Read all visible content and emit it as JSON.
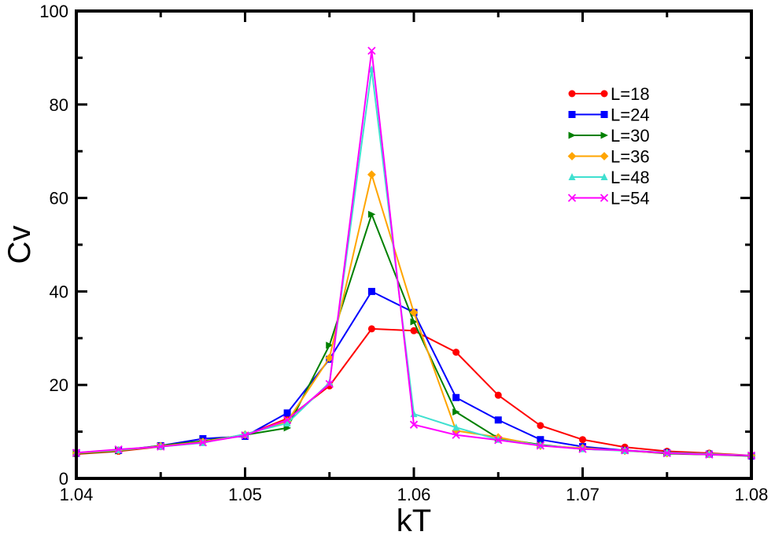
{
  "chart_data": {
    "type": "line",
    "title": "",
    "xlabel": "kT",
    "ylabel": "Cv",
    "xlim": [
      1.04,
      1.08
    ],
    "ylim": [
      0,
      100
    ],
    "xticks": [
      "1.04",
      "1.05",
      "1.06",
      "1.07",
      "1.08"
    ],
    "yticks": [
      "0",
      "20",
      "40",
      "60",
      "80",
      "100"
    ],
    "grid": false,
    "legend_position": "top-right",
    "series": [
      {
        "name": "L=18",
        "color": "#ff0000",
        "marker": "circle",
        "x": [
          1.04,
          1.0425,
          1.045,
          1.0475,
          1.05,
          1.0525,
          1.055,
          1.0575,
          1.06,
          1.0625,
          1.065,
          1.0675,
          1.07,
          1.0725,
          1.075,
          1.0775,
          1.08
        ],
        "y": [
          5.2,
          5.8,
          6.8,
          7.9,
          9.2,
          12.8,
          19.8,
          32.0,
          31.6,
          27.0,
          17.8,
          11.3,
          8.3,
          6.7,
          5.8,
          5.4,
          4.9
        ]
      },
      {
        "name": "L=24",
        "color": "#0000ff",
        "marker": "square",
        "x": [
          1.04,
          1.0425,
          1.045,
          1.0475,
          1.05,
          1.0525,
          1.055,
          1.0575,
          1.06,
          1.0625,
          1.065,
          1.0675,
          1.07,
          1.0725,
          1.075,
          1.0775,
          1.08
        ],
        "y": [
          5.4,
          6.0,
          7.0,
          8.5,
          9.0,
          14.0,
          25.5,
          40.0,
          35.5,
          17.3,
          12.5,
          8.3,
          6.8,
          6.0,
          5.5,
          5.2,
          4.8
        ]
      },
      {
        "name": "L=30",
        "color": "#008000",
        "marker": "triangle-right",
        "x": [
          1.04,
          1.0425,
          1.045,
          1.0475,
          1.05,
          1.0525,
          1.055,
          1.0575,
          1.06,
          1.0625,
          1.065,
          1.0675,
          1.07,
          1.0725,
          1.075,
          1.0775,
          1.08
        ],
        "y": [
          5.3,
          5.9,
          7.0,
          8.0,
          9.3,
          10.8,
          28.5,
          56.5,
          33.5,
          14.2,
          8.6,
          7.2,
          6.3,
          6.0,
          5.3,
          5.1,
          4.8
        ]
      },
      {
        "name": "L=36",
        "color": "#ffa500",
        "marker": "diamond",
        "x": [
          1.04,
          1.0425,
          1.045,
          1.0475,
          1.05,
          1.0525,
          1.055,
          1.0575,
          1.06,
          1.0625,
          1.065,
          1.0675,
          1.07,
          1.0725,
          1.075,
          1.0775,
          1.08
        ],
        "y": [
          5.4,
          6.0,
          6.9,
          7.8,
          9.4,
          12.2,
          25.8,
          65.0,
          35.5,
          10.2,
          8.8,
          7.0,
          6.5,
          5.9,
          5.4,
          5.2,
          4.9
        ]
      },
      {
        "name": "L=48",
        "color": "#40e0d0",
        "marker": "triangle-up",
        "x": [
          1.04,
          1.0425,
          1.045,
          1.0475,
          1.05,
          1.0525,
          1.055,
          1.0575,
          1.06,
          1.0625,
          1.065,
          1.0675,
          1.07,
          1.0725,
          1.075,
          1.0775,
          1.08
        ],
        "y": [
          5.5,
          6.1,
          6.8,
          7.6,
          9.5,
          11.8,
          20.5,
          87.5,
          13.8,
          10.9,
          8.3,
          7.1,
          6.3,
          5.9,
          5.5,
          5.2,
          4.9
        ]
      },
      {
        "name": "L=54",
        "color": "#ff00ff",
        "marker": "x",
        "x": [
          1.04,
          1.0425,
          1.045,
          1.0475,
          1.05,
          1.0525,
          1.055,
          1.0575,
          1.06,
          1.0625,
          1.065,
          1.0675,
          1.07,
          1.0725,
          1.075,
          1.0775,
          1.08
        ],
        "y": [
          5.5,
          6.2,
          6.8,
          7.7,
          9.2,
          12.5,
          20.2,
          91.5,
          11.5,
          9.3,
          8.2,
          7.0,
          6.3,
          6.0,
          5.4,
          5.1,
          4.9
        ]
      }
    ]
  }
}
